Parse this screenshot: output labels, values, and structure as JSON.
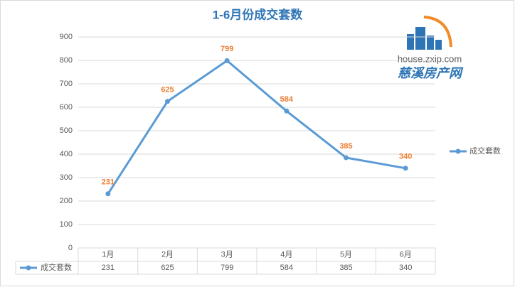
{
  "chart_data": {
    "type": "line",
    "title": "1-6月份成交套数",
    "categories": [
      "1月",
      "2月",
      "3月",
      "4月",
      "5月",
      "6月"
    ],
    "series": [
      {
        "name": "成交套数",
        "color": "#5b9bd5",
        "values": [
          231,
          625,
          799,
          584,
          385,
          340
        ]
      }
    ],
    "label_color": "#ed7d31",
    "ylim": [
      0,
      900
    ],
    "yticks": [
      0,
      100,
      200,
      300,
      400,
      500,
      600,
      700,
      800,
      900
    ],
    "grid": true,
    "legend": "right",
    "data_table": true,
    "watermark": {
      "url": "house.zxip.com",
      "name": "慈溪房产网"
    }
  }
}
